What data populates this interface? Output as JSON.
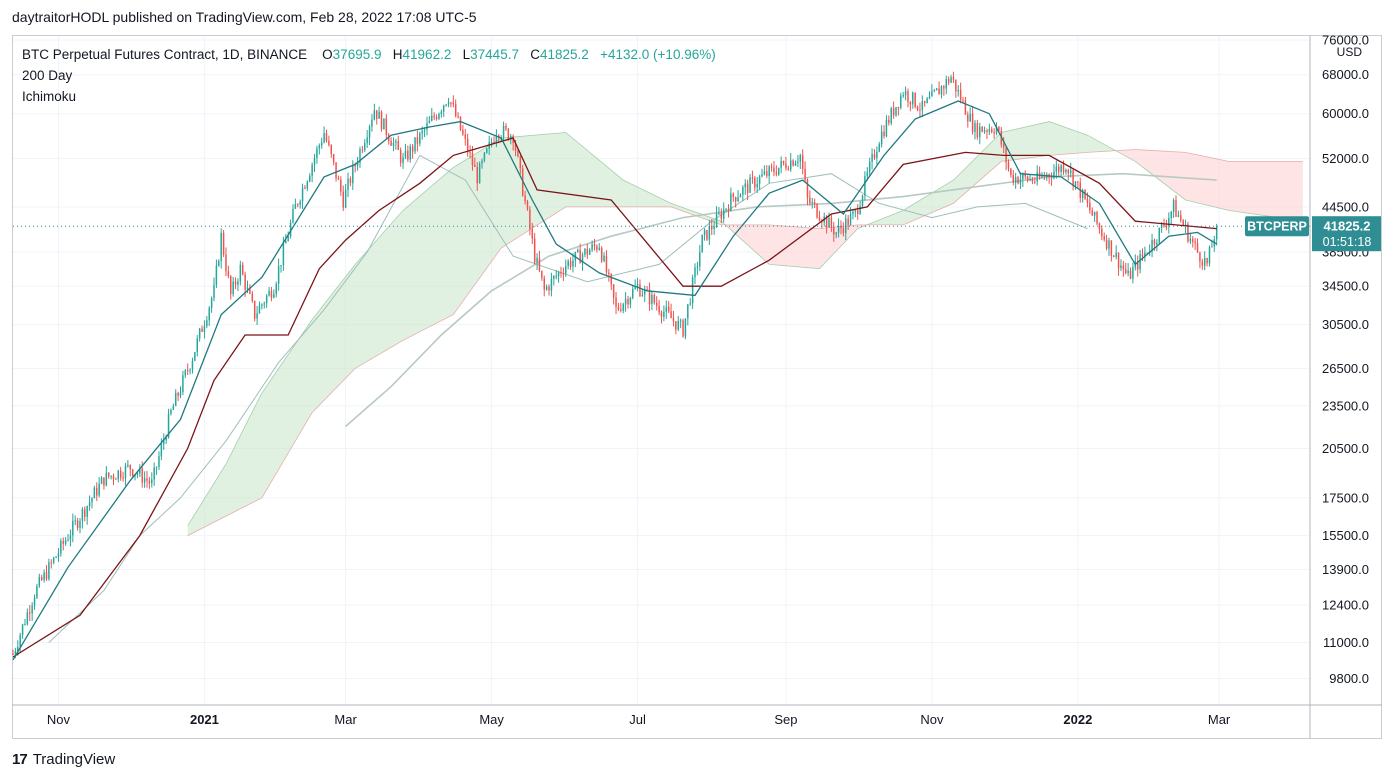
{
  "header": {
    "published_by": "daytraitorHODL published on TradingView.com, Feb 28, 2022 17:08 UTC-5"
  },
  "legend": {
    "symbol_line": "BTC Perpetual Futures Contract, 1D, BINANCE",
    "o_label": "O",
    "o_value": "37695.9",
    "h_label": "H",
    "h_value": "41962.2",
    "l_label": "L",
    "l_value": "37445.7",
    "c_label": "C",
    "c_value": "41825.2",
    "change": "+4132.0 (+10.96%)",
    "indicator_1": "200 Day",
    "indicator_2": "Ichimoku"
  },
  "price_tag": {
    "symbol": "BTCPERP",
    "price": "41825.2",
    "countdown": "01:51:18"
  },
  "footer": {
    "brand": "TradingView",
    "logo_text": "17"
  },
  "colors": {
    "up": "#26a69a",
    "down": "#ef5350",
    "tenkan": "#2962ff",
    "conversion": "#1e7a80",
    "kijun": "#7b1418",
    "cloud_bull": "#c8e6c9",
    "cloud_bear": "#ffcdd2",
    "ma200": "#b7c9c3",
    "tag_bg": "#2f8e94"
  },
  "chart_data": {
    "type": "candlestick",
    "title": "BTC Perpetual Futures Contract, 1D, BINANCE",
    "y_scale": "log",
    "y_unit": "USD",
    "ylim": [
      9000,
      77000
    ],
    "y_ticks": [
      {
        "value": 76000,
        "label": "76000.0"
      },
      {
        "value": 68000,
        "label": "68000.0"
      },
      {
        "value": 60000,
        "label": "60000.0"
      },
      {
        "value": 52000,
        "label": "52000.0"
      },
      {
        "value": 44500,
        "label": "44500.0"
      },
      {
        "value": 38500,
        "label": "38500.0"
      },
      {
        "value": 34500,
        "label": "34500.0"
      },
      {
        "value": 30500,
        "label": "30500.0"
      },
      {
        "value": 26500,
        "label": "26500.0"
      },
      {
        "value": 23500,
        "label": "23500.0"
      },
      {
        "value": 20500,
        "label": "20500.0"
      },
      {
        "value": 17500,
        "label": "17500.0"
      },
      {
        "value": 15500,
        "label": "15500.0"
      },
      {
        "value": 13900,
        "label": "13900.0"
      },
      {
        "value": 12400,
        "label": "12400.0"
      },
      {
        "value": 11000,
        "label": "11000.0"
      },
      {
        "value": 9800,
        "label": "9800.0"
      }
    ],
    "x_ticks": [
      {
        "label": "Nov",
        "date": "2020-11-01",
        "bold": false
      },
      {
        "label": "2021",
        "date": "2021-01-01",
        "bold": true
      },
      {
        "label": "Mar",
        "date": "2021-03-01",
        "bold": false
      },
      {
        "label": "May",
        "date": "2021-05-01",
        "bold": false
      },
      {
        "label": "Jul",
        "date": "2021-07-01",
        "bold": false
      },
      {
        "label": "Sep",
        "date": "2021-09-01",
        "bold": false
      },
      {
        "label": "Nov",
        "date": "2021-11-01",
        "bold": false
      },
      {
        "label": "2022",
        "date": "2022-01-01",
        "bold": true
      },
      {
        "label": "Mar",
        "date": "2022-03-01",
        "bold": false
      }
    ],
    "x_range": [
      "2020-10-13",
      "2022-04-08"
    ],
    "last_date": "2022-02-28",
    "current_price": 41825.2,
    "price_path": [
      [
        "2020-10-13",
        10600
      ],
      [
        "2020-10-22",
        12900
      ],
      [
        "2020-11-05",
        15500
      ],
      [
        "2020-11-20",
        18600
      ],
      [
        "2020-12-01",
        19300
      ],
      [
        "2020-12-10",
        18300
      ],
      [
        "2020-12-18",
        23000
      ],
      [
        "2020-12-27",
        27500
      ],
      [
        "2021-01-05",
        34000
      ],
      [
        "2021-01-08",
        40500
      ],
      [
        "2021-01-12",
        33500
      ],
      [
        "2021-01-16",
        36500
      ],
      [
        "2021-01-22",
        31500
      ],
      [
        "2021-01-30",
        34500
      ],
      [
        "2021-02-08",
        44500
      ],
      [
        "2021-02-20",
        56500
      ],
      [
        "2021-02-28",
        45500
      ],
      [
        "2021-03-13",
        61000
      ],
      [
        "2021-03-25",
        51500
      ],
      [
        "2021-04-13",
        63500
      ],
      [
        "2021-04-25",
        49000
      ],
      [
        "2021-05-03",
        57000
      ],
      [
        "2021-05-10",
        56000
      ],
      [
        "2021-05-19",
        38000
      ],
      [
        "2021-05-23",
        34000
      ],
      [
        "2021-06-01",
        37000
      ],
      [
        "2021-06-15",
        39500
      ],
      [
        "2021-06-22",
        32000
      ],
      [
        "2021-07-01",
        34500
      ],
      [
        "2021-07-20",
        30000
      ],
      [
        "2021-07-28",
        40000
      ],
      [
        "2021-08-10",
        46000
      ],
      [
        "2021-08-22",
        49000
      ],
      [
        "2021-09-07",
        52500
      ],
      [
        "2021-09-10",
        45500
      ],
      [
        "2021-09-22",
        41000
      ],
      [
        "2021-09-30",
        43500
      ],
      [
        "2021-10-10",
        55500
      ],
      [
        "2021-10-20",
        64500
      ],
      [
        "2021-10-28",
        61000
      ],
      [
        "2021-11-09",
        67500
      ],
      [
        "2021-11-19",
        57000
      ],
      [
        "2021-11-28",
        57500
      ],
      [
        "2021-12-04",
        49000
      ],
      [
        "2021-12-15",
        48500
      ],
      [
        "2021-12-27",
        51000
      ],
      [
        "2022-01-10",
        41500
      ],
      [
        "2022-01-22",
        35500
      ],
      [
        "2022-02-05",
        41500
      ],
      [
        "2022-02-10",
        44500
      ],
      [
        "2022-02-20",
        38500
      ],
      [
        "2022-02-24",
        37000
      ],
      [
        "2022-02-28",
        41825
      ]
    ],
    "tenkan_path": [
      [
        "2020-10-13",
        10400
      ],
      [
        "2020-11-05",
        14000
      ],
      [
        "2020-12-01",
        18500
      ],
      [
        "2020-12-22",
        22500
      ],
      [
        "2021-01-08",
        31500
      ],
      [
        "2021-01-25",
        35500
      ],
      [
        "2021-02-20",
        49000
      ],
      [
        "2021-03-05",
        51000
      ],
      [
        "2021-03-20",
        56000
      ],
      [
        "2021-04-05",
        57500
      ],
      [
        "2021-04-18",
        58500
      ],
      [
        "2021-05-05",
        55500
      ],
      [
        "2021-05-18",
        45500
      ],
      [
        "2021-05-28",
        39500
      ],
      [
        "2021-06-15",
        36000
      ],
      [
        "2021-07-05",
        34000
      ],
      [
        "2021-07-25",
        33500
      ],
      [
        "2021-08-10",
        40500
      ],
      [
        "2021-08-25",
        46500
      ],
      [
        "2021-09-08",
        48500
      ],
      [
        "2021-09-25",
        43500
      ],
      [
        "2021-10-12",
        52500
      ],
      [
        "2021-10-25",
        59000
      ],
      [
        "2021-11-12",
        62500
      ],
      [
        "2021-11-25",
        60000
      ],
      [
        "2021-12-08",
        49500
      ],
      [
        "2021-12-25",
        49000
      ],
      [
        "2022-01-10",
        45000
      ],
      [
        "2022-01-25",
        37000
      ],
      [
        "2022-02-08",
        40500
      ],
      [
        "2022-02-20",
        41000
      ],
      [
        "2022-02-28",
        39500
      ]
    ],
    "kijun_path": [
      [
        "2020-10-13",
        10500
      ],
      [
        "2020-11-10",
        12000
      ],
      [
        "2020-12-05",
        15500
      ],
      [
        "2020-12-25",
        20500
      ],
      [
        "2021-01-05",
        25500
      ],
      [
        "2021-01-18",
        29500
      ],
      [
        "2021-02-05",
        29500
      ],
      [
        "2021-02-18",
        36500
      ],
      [
        "2021-03-01",
        40000
      ],
      [
        "2021-03-15",
        44000
      ],
      [
        "2021-04-01",
        48000
      ],
      [
        "2021-04-15",
        52500
      ],
      [
        "2021-05-10",
        55500
      ],
      [
        "2021-05-20",
        47000
      ],
      [
        "2021-06-20",
        45500
      ],
      [
        "2021-07-20",
        34500
      ],
      [
        "2021-08-05",
        34500
      ],
      [
        "2021-08-25",
        37500
      ],
      [
        "2021-09-20",
        43500
      ],
      [
        "2021-10-05",
        44500
      ],
      [
        "2021-10-20",
        51000
      ],
      [
        "2021-11-15",
        53000
      ],
      [
        "2021-12-01",
        52500
      ],
      [
        "2021-12-20",
        52500
      ],
      [
        "2022-01-10",
        48000
      ],
      [
        "2022-01-25",
        42500
      ],
      [
        "2022-02-28",
        41500
      ]
    ],
    "ma200_path": [
      [
        "2021-03-01",
        22000
      ],
      [
        "2021-03-20",
        25000
      ],
      [
        "2021-04-10",
        29500
      ],
      [
        "2021-05-01",
        34000
      ],
      [
        "2021-05-25",
        38000
      ],
      [
        "2021-06-20",
        40500
      ],
      [
        "2021-07-20",
        43000
      ],
      [
        "2021-08-20",
        44500
      ],
      [
        "2021-09-20",
        45000
      ],
      [
        "2021-10-20",
        46000
      ],
      [
        "2021-11-20",
        47500
      ],
      [
        "2021-12-20",
        49000
      ],
      [
        "2022-01-20",
        49500
      ],
      [
        "2022-02-28",
        48500
      ]
    ],
    "lagging_span_path": [
      [
        "2020-10-28",
        11000
      ],
      [
        "2020-11-20",
        13000
      ],
      [
        "2020-12-05",
        15500
      ],
      [
        "2020-12-22",
        17500
      ],
      [
        "2021-01-10",
        21000
      ],
      [
        "2021-02-01",
        27000
      ],
      [
        "2021-02-20",
        32000
      ],
      [
        "2021-03-10",
        38500
      ],
      [
        "2021-04-01",
        52500
      ],
      [
        "2021-04-20",
        48500
      ],
      [
        "2021-05-10",
        38000
      ],
      [
        "2021-06-10",
        35000
      ],
      [
        "2021-07-10",
        37000
      ],
      [
        "2021-08-01",
        42500
      ],
      [
        "2021-08-25",
        48000
      ],
      [
        "2021-09-20",
        49500
      ],
      [
        "2021-10-10",
        45000
      ],
      [
        "2021-11-01",
        43000
      ],
      [
        "2021-11-20",
        44500
      ],
      [
        "2021-12-10",
        45000
      ],
      [
        "2022-01-05",
        41500
      ]
    ],
    "cloud": {
      "span_a": [
        [
          "2020-12-25",
          16000
        ],
        [
          "2021-01-10",
          19500
        ],
        [
          "2021-01-25",
          24500
        ],
        [
          "2021-02-15",
          31000
        ],
        [
          "2021-03-05",
          37000
        ],
        [
          "2021-03-25",
          44000
        ],
        [
          "2021-04-15",
          50500
        ],
        [
          "2021-05-05",
          55500
        ],
        [
          "2021-06-01",
          56500
        ],
        [
          "2021-06-25",
          48500
        ],
        [
          "2021-07-15",
          45000
        ],
        [
          "2021-08-05",
          42500
        ],
        [
          "2021-08-25",
          37000
        ],
        [
          "2021-09-15",
          36500
        ],
        [
          "2021-10-01",
          41500
        ],
        [
          "2021-10-20",
          44000
        ],
        [
          "2021-11-10",
          48500
        ],
        [
          "2021-11-30",
          56500
        ],
        [
          "2021-12-20",
          58500
        ],
        [
          "2022-01-05",
          56000
        ],
        [
          "2022-01-25",
          51500
        ],
        [
          "2022-02-15",
          45500
        ],
        [
          "2022-03-05",
          44000
        ],
        [
          "2022-04-05",
          42500
        ]
      ],
      "span_b": [
        [
          "2020-12-25",
          15500
        ],
        [
          "2021-01-10",
          16500
        ],
        [
          "2021-01-25",
          17500
        ],
        [
          "2021-02-15",
          23000
        ],
        [
          "2021-03-05",
          26500
        ],
        [
          "2021-03-25",
          29000
        ],
        [
          "2021-04-15",
          31500
        ],
        [
          "2021-05-05",
          39000
        ],
        [
          "2021-06-01",
          44500
        ],
        [
          "2021-06-25",
          44500
        ],
        [
          "2021-07-15",
          44500
        ],
        [
          "2021-08-05",
          42000
        ],
        [
          "2021-08-25",
          42000
        ],
        [
          "2021-09-15",
          41500
        ],
        [
          "2021-10-01",
          42000
        ],
        [
          "2021-10-20",
          42000
        ],
        [
          "2021-11-10",
          45000
        ],
        [
          "2021-11-30",
          51500
        ],
        [
          "2021-12-20",
          52500
        ],
        [
          "2022-01-05",
          53000
        ],
        [
          "2022-01-25",
          53500
        ],
        [
          "2022-02-15",
          53000
        ],
        [
          "2022-03-05",
          51500
        ],
        [
          "2022-04-05",
          51500
        ]
      ]
    }
  }
}
